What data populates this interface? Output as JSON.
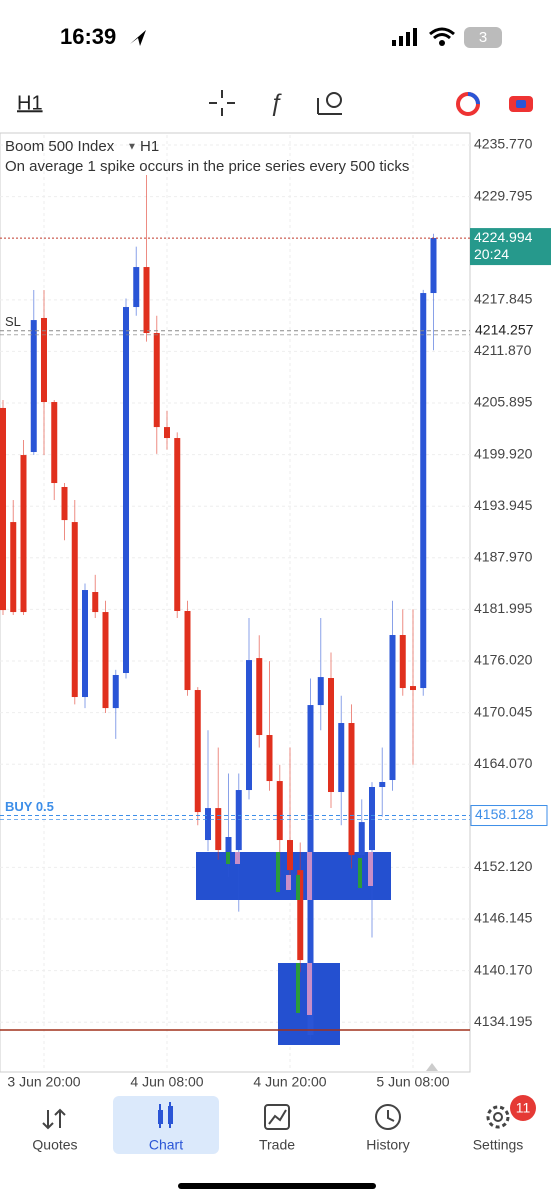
{
  "status_bar": {
    "time": "16:39",
    "battery": "3"
  },
  "toolbar": {
    "timeframe": "H1"
  },
  "chart_data": {
    "type": "candlestick",
    "title": "Boom 500 Index",
    "timeframe": "H1",
    "subtitle": "On average 1 spike occurs in the price series every 500 ticks",
    "categories": [
      null,
      null,
      null,
      null,
      "3 Jun 20:00",
      null,
      null,
      null,
      null,
      null,
      null,
      null,
      null,
      null,
      null,
      null,
      "4 Jun 08:00",
      null,
      null,
      null,
      null,
      null,
      null,
      null,
      null,
      null,
      null,
      null,
      "4 Jun 20:00",
      null,
      null,
      null,
      null,
      null,
      null,
      null,
      null,
      null,
      null,
      null,
      "5 Jun 08:00",
      null,
      null
    ],
    "open": [
      4205.32,
      4192.11,
      4199.87,
      4200.22,
      4215.74,
      4206.01,
      4196.17,
      4192.11,
      4171.85,
      4184.01,
      4181.69,
      4170.57,
      4174.63,
      4217.01,
      4221.64,
      4214.0,
      4203.11,
      4201.84,
      4181.81,
      4172.66,
      4155.29,
      4158.99,
      4153.9,
      4154.13,
      4161.08,
      4176.36,
      4167.45,
      4162.12,
      4155.29,
      4151.81,
      4132.71,
      4170.92,
      4174.05,
      4160.85,
      4168.84,
      4153.55,
      4154.13,
      4161.43,
      4162.24,
      4179.03,
      4173.12,
      4172.89,
      4218.63
    ],
    "high": [
      4206.24,
      4194.66,
      4201.61,
      4218.98,
      4218.98,
      4206.24,
      4196.63,
      4194.66,
      4185,
      4186,
      4183,
      4175,
      4218,
      4224,
      4232.3,
      4216,
      4205,
      4202.5,
      4183,
      4173,
      4168,
      4166,
      4163,
      4163,
      4181,
      4179,
      4176,
      4164,
      4166,
      4155,
      4174,
      4181,
      4177,
      4172,
      4171,
      4160,
      4162,
      4166,
      4183,
      4182,
      4182,
      4219,
      4225.5
    ],
    "low": [
      4181.35,
      4181.35,
      4181.35,
      4199.87,
      4199.87,
      4194.66,
      4190,
      4171.0,
      4170.57,
      4181,
      4170,
      4167,
      4174,
      4216,
      4213,
      4200,
      4200.5,
      4181,
      4172,
      4157,
      4154,
      4153,
      4151,
      4147,
      4160,
      4166,
      4161,
      4151,
      4150,
      4140,
      4132,
      4168,
      4159,
      4157,
      4152,
      4150,
      4144,
      4158,
      4161,
      4172,
      4164,
      4172,
      4212
    ],
    "close": [
      4181.92,
      4181.69,
      4181.69,
      4215.5,
      4206.01,
      4196.63,
      4192.34,
      4171.85,
      4184.24,
      4181.69,
      4170.57,
      4174.4,
      4217.01,
      4221.64,
      4214.0,
      4203.11,
      4201.84,
      4181.81,
      4172.66,
      4158.53,
      4158.99,
      4154.13,
      4155.64,
      4161.08,
      4176.13,
      4167.45,
      4162.12,
      4155.29,
      4151.81,
      4141.39,
      4170.92,
      4174.16,
      4160.85,
      4168.84,
      4153.55,
      4157.37,
      4161.43,
      4162.01,
      4179.03,
      4172.89,
      4172.66,
      4218.63,
      4225.0
    ],
    "up_color": "#2a55d6",
    "down_color": "#e0301e",
    "ylim": [
      4128.66,
      4236.93
    ],
    "yticks": [
      {
        "value": 4235.77,
        "label": "4235.770"
      },
      4229.795,
      4217.845,
      {
        "value": 4211.87,
        "label": "4211.870"
      },
      4205.895,
      {
        "value": 4199.92,
        "label": "4199.920"
      },
      4193.945,
      {
        "value": 4187.97,
        "label": "4187.970"
      },
      4181.995,
      {
        "value": 4176.02,
        "label": "4176.020"
      },
      4170.045,
      {
        "value": 4164.07,
        "label": "4164.070"
      },
      {
        "value": 4152.12,
        "label": "4152.120"
      },
      4146.145,
      {
        "value": 4140.17,
        "label": "4140.170"
      },
      4134.195
    ],
    "grid": true,
    "current_price": 4224.994,
    "current_time": "20:24",
    "price_lines": [
      {
        "name": "SL",
        "value": 4214.257,
        "color": "#888888"
      },
      {
        "name": "BUY 0.5",
        "value": 4158.128,
        "color": "#3d8ee8"
      }
    ]
  },
  "nav": {
    "items": [
      "Quotes",
      "Chart",
      "Trade",
      "History",
      "Settings"
    ],
    "badge": "11"
  }
}
